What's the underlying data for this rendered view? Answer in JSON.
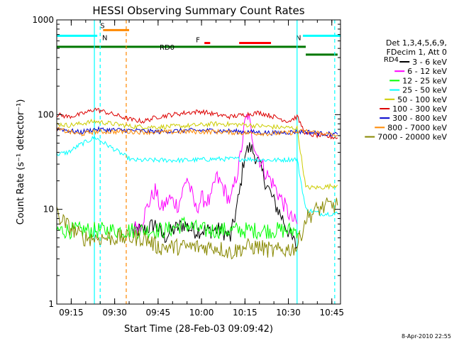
{
  "chart_data": {
    "type": "line",
    "title": "HESSI Observing Summary Count Rates",
    "xlabel": "Start Time (28-Feb-03 09:09:42)",
    "ylabel": "Count Rate (s⁻¹ detector⁻¹)",
    "scale": "log-y",
    "xlim": [
      "09:10",
      "10:48"
    ],
    "ylim": [
      1,
      1000
    ],
    "x_ticks": [
      "09:15",
      "09:30",
      "09:45",
      "10:00",
      "10:15",
      "10:30",
      "10:45"
    ],
    "y_ticks": [
      "1",
      "10",
      "100",
      "1000"
    ],
    "legend": {
      "position": "right",
      "header": [
        "Det 1,3,4,5,6,9,",
        "FDecim 1, Att 0"
      ],
      "entries": [
        {
          "label": "3 - 6 keV",
          "color": "#000000"
        },
        {
          "label": "6 - 12 keV",
          "color": "#ff00ff"
        },
        {
          "label": "12 - 25 keV",
          "color": "#00ff00"
        },
        {
          "label": "25 - 50 keV",
          "color": "#00ffff"
        },
        {
          "label": "50 - 100 keV",
          "color": "#cccc00"
        },
        {
          "label": "100 - 300 keV",
          "color": "#dd0000"
        },
        {
          "label": "300 - 800 keV",
          "color": "#0000cc"
        },
        {
          "label": "800 - 7000 keV",
          "color": "#ff8800"
        },
        {
          "label": "7000 - 20000 keV",
          "color": "#888800"
        }
      ]
    },
    "flags": [
      {
        "label": "S",
        "color": "#ff8800",
        "start": "09:26",
        "end": "09:35",
        "level": 780
      },
      {
        "label": "N",
        "color": "#00ffff",
        "start": "09:10",
        "end": "09:24",
        "level": 680
      },
      {
        "label": "N",
        "color": "#00ffff",
        "start": "10:35",
        "end": "10:48",
        "level": 680
      },
      {
        "label": "F",
        "color": "#ff0000",
        "start": "10:01",
        "end": "10:03",
        "level": 570
      },
      {
        "label": "",
        "color": "#ff0000",
        "start": "10:13",
        "end": "10:24",
        "level": 570
      },
      {
        "label": "RD0",
        "color": "#007700",
        "start": "09:10",
        "end": "10:36",
        "level": 520
      },
      {
        "label": "RD4",
        "color": "#007700",
        "start": "10:36",
        "end": "10:47",
        "level": 430
      }
    ],
    "vertical_markers": [
      {
        "time": "09:23",
        "color": "#00ffff",
        "style": "solid"
      },
      {
        "time": "09:25",
        "color": "#00ffff",
        "style": "dashed"
      },
      {
        "time": "09:34",
        "color": "#ff8800",
        "style": "dashed"
      },
      {
        "time": "10:33",
        "color": "#00ffff",
        "style": "solid"
      },
      {
        "time": "10:46",
        "color": "#00ffff",
        "style": "dashed"
      }
    ],
    "gap": {
      "start": "09:24",
      "end": "09:36"
    },
    "series": [
      {
        "name": "3 - 6 keV",
        "color": "#000000",
        "points": [
          [
            "09:36",
            6
          ],
          [
            "09:40",
            6
          ],
          [
            "09:44",
            7
          ],
          [
            "09:47",
            5
          ],
          [
            "09:50",
            6
          ],
          [
            "09:54",
            7
          ],
          [
            "09:57",
            6
          ],
          [
            "10:00",
            6
          ],
          [
            "10:04",
            6
          ],
          [
            "10:07",
            6
          ],
          [
            "10:10",
            5
          ],
          [
            "10:13",
            14
          ],
          [
            "10:15",
            40
          ],
          [
            "10:17",
            45
          ],
          [
            "10:19",
            35
          ],
          [
            "10:22",
            20
          ],
          [
            "10:25",
            12
          ],
          [
            "10:28",
            8
          ],
          [
            "10:31",
            5
          ],
          [
            "10:33",
            4
          ]
        ]
      },
      {
        "name": "6 - 12 keV",
        "color": "#ff00ff",
        "points": [
          [
            "09:36",
            6
          ],
          [
            "09:39",
            7
          ],
          [
            "09:42",
            12
          ],
          [
            "09:44",
            16
          ],
          [
            "09:46",
            10
          ],
          [
            "09:49",
            13
          ],
          [
            "09:52",
            11
          ],
          [
            "09:55",
            22
          ],
          [
            "09:58",
            10
          ],
          [
            "10:00",
            13
          ],
          [
            "10:03",
            12
          ],
          [
            "10:05",
            22
          ],
          [
            "10:07",
            18
          ],
          [
            "10:10",
            12
          ],
          [
            "10:13",
            30
          ],
          [
            "10:15",
            80
          ],
          [
            "10:16",
            100
          ],
          [
            "10:17",
            70
          ],
          [
            "10:19",
            40
          ],
          [
            "10:22",
            25
          ],
          [
            "10:25",
            18
          ],
          [
            "10:28",
            12
          ],
          [
            "10:31",
            8
          ],
          [
            "10:33",
            7
          ]
        ]
      },
      {
        "name": "12 - 25 keV",
        "color": "#00ff00",
        "points": [
          [
            "09:10",
            6
          ],
          [
            "09:15",
            6
          ],
          [
            "09:20",
            6
          ],
          [
            "09:23",
            6
          ],
          [
            "09:36",
            6
          ],
          [
            "09:42",
            6
          ],
          [
            "09:48",
            6
          ],
          [
            "09:54",
            7
          ],
          [
            "10:00",
            6
          ],
          [
            "10:06",
            6
          ],
          [
            "10:12",
            6
          ],
          [
            "10:18",
            6
          ],
          [
            "10:24",
            6
          ],
          [
            "10:30",
            6
          ],
          [
            "10:34",
            6
          ]
        ]
      },
      {
        "name": "25 - 50 keV",
        "color": "#00ffff",
        "points": [
          [
            "09:10",
            38
          ],
          [
            "09:14",
            40
          ],
          [
            "09:18",
            48
          ],
          [
            "09:22",
            55
          ],
          [
            "09:23",
            58
          ],
          [
            "09:36",
            33
          ],
          [
            "09:45",
            33
          ],
          [
            "09:55",
            33
          ],
          [
            "10:05",
            34
          ],
          [
            "10:15",
            34
          ],
          [
            "10:25",
            33
          ],
          [
            "10:33",
            34
          ],
          [
            "10:36",
            10
          ],
          [
            "10:41",
            9
          ],
          [
            "10:47",
            9
          ]
        ]
      },
      {
        "name": "50 - 100 keV",
        "color": "#cccc00",
        "points": [
          [
            "09:10",
            80
          ],
          [
            "09:14",
            77
          ],
          [
            "09:18",
            80
          ],
          [
            "09:23",
            85
          ],
          [
            "09:36",
            75
          ],
          [
            "09:45",
            74
          ],
          [
            "09:55",
            76
          ],
          [
            "10:05",
            80
          ],
          [
            "10:15",
            78
          ],
          [
            "10:25",
            74
          ],
          [
            "10:33",
            72
          ],
          [
            "10:36",
            17
          ],
          [
            "10:41",
            17
          ],
          [
            "10:47",
            18
          ]
        ]
      },
      {
        "name": "100 - 300 keV",
        "color": "#dd0000",
        "points": [
          [
            "09:10",
            100
          ],
          [
            "09:14",
            95
          ],
          [
            "09:18",
            100
          ],
          [
            "09:22",
            110
          ],
          [
            "09:23",
            115
          ],
          [
            "09:36",
            88
          ],
          [
            "09:40",
            85
          ],
          [
            "09:45",
            95
          ],
          [
            "09:50",
            100
          ],
          [
            "09:55",
            105
          ],
          [
            "10:00",
            108
          ],
          [
            "10:05",
            100
          ],
          [
            "10:10",
            95
          ],
          [
            "10:15",
            100
          ],
          [
            "10:20",
            105
          ],
          [
            "10:25",
            95
          ],
          [
            "10:30",
            85
          ],
          [
            "10:33",
            95
          ],
          [
            "10:36",
            62
          ],
          [
            "10:41",
            60
          ],
          [
            "10:47",
            57
          ]
        ]
      },
      {
        "name": "300 - 800 keV",
        "color": "#0000cc",
        "points": [
          [
            "09:10",
            72
          ],
          [
            "09:14",
            68
          ],
          [
            "09:18",
            65
          ],
          [
            "09:23",
            70
          ],
          [
            "09:36",
            68
          ],
          [
            "09:45",
            66
          ],
          [
            "09:55",
            68
          ],
          [
            "10:05",
            68
          ],
          [
            "10:15",
            66
          ],
          [
            "10:25",
            64
          ],
          [
            "10:33",
            66
          ],
          [
            "10:36",
            66
          ],
          [
            "10:41",
            63
          ],
          [
            "10:47",
            62
          ]
        ]
      },
      {
        "name": "800 - 7000 keV",
        "color": "#ff8800",
        "points": [
          [
            "09:10",
            70
          ],
          [
            "09:14",
            66
          ],
          [
            "09:18",
            62
          ],
          [
            "09:23",
            66
          ],
          [
            "09:36",
            66
          ],
          [
            "09:45",
            65
          ],
          [
            "09:55",
            66
          ],
          [
            "10:05",
            66
          ],
          [
            "10:15",
            64
          ],
          [
            "10:25",
            63
          ],
          [
            "10:33",
            65
          ],
          [
            "10:36",
            67
          ],
          [
            "10:41",
            64
          ],
          [
            "10:47",
            60
          ]
        ]
      },
      {
        "name": "7000 - 20000 keV",
        "color": "#888800",
        "points": [
          [
            "09:10",
            9
          ],
          [
            "09:13",
            7
          ],
          [
            "09:16",
            6
          ],
          [
            "09:19",
            5
          ],
          [
            "09:23",
            5
          ],
          [
            "09:36",
            5
          ],
          [
            "09:40",
            5
          ],
          [
            "09:45",
            4
          ],
          [
            "09:50",
            4
          ],
          [
            "09:55",
            4
          ],
          [
            "10:00",
            4
          ],
          [
            "10:05",
            4
          ],
          [
            "10:10",
            3.5
          ],
          [
            "10:15",
            4
          ],
          [
            "10:20",
            4
          ],
          [
            "10:25",
            3.6
          ],
          [
            "10:30",
            3.8
          ],
          [
            "10:33",
            4
          ],
          [
            "10:36",
            8
          ],
          [
            "10:40",
            10
          ],
          [
            "10:44",
            11
          ],
          [
            "10:47",
            11
          ]
        ]
      }
    ]
  },
  "footer": {
    "timestamp": "8-Apr-2010 22:55"
  }
}
